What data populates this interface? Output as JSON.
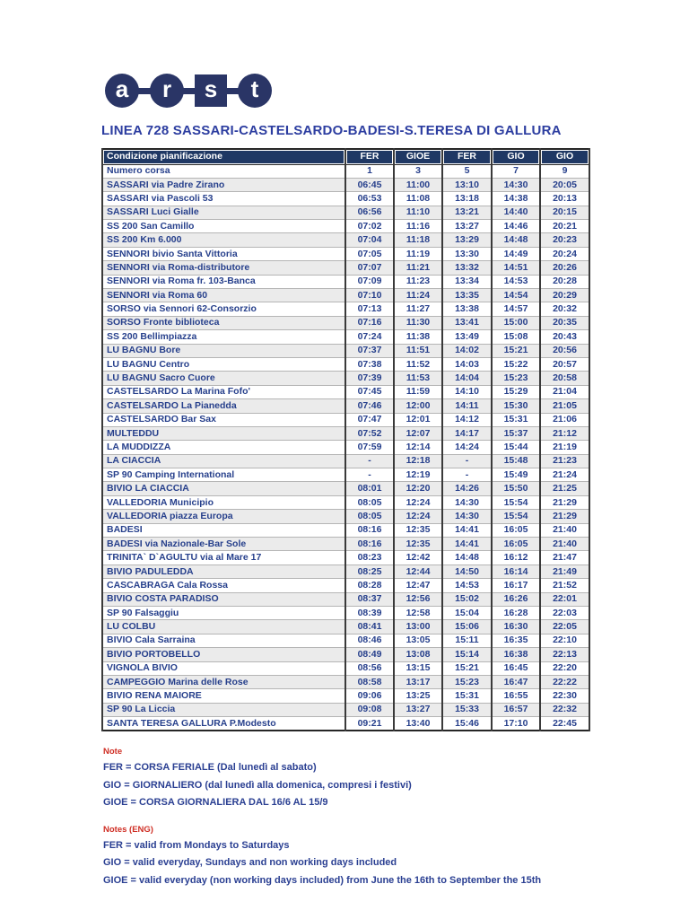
{
  "logo": {
    "letters": [
      "a",
      "r",
      "s",
      "t"
    ]
  },
  "title": "LINEA 728 SASSARI-CASTELSARDO-BADESI-S.TERESA DI GALLURA",
  "table": {
    "header": {
      "col0": "Condizione pianificazione",
      "cols": [
        "FER",
        "GIOE",
        "FER",
        "GIO",
        "GIO"
      ]
    },
    "numero_corsa": {
      "label": "Numero corsa",
      "values": [
        "1",
        "3",
        "5",
        "7",
        "9"
      ]
    },
    "rows": [
      {
        "stop": "SASSARI via Padre Zirano",
        "times": [
          "06:45",
          "11:00",
          "13:10",
          "14:30",
          "20:05"
        ]
      },
      {
        "stop": "SASSARI via Pascoli 53",
        "times": [
          "06:53",
          "11:08",
          "13:18",
          "14:38",
          "20:13"
        ]
      },
      {
        "stop": "SASSARI Luci Gialle",
        "times": [
          "06:56",
          "11:10",
          "13:21",
          "14:40",
          "20:15"
        ]
      },
      {
        "stop": "SS 200 San Camillo",
        "times": [
          "07:02",
          "11:16",
          "13:27",
          "14:46",
          "20:21"
        ]
      },
      {
        "stop": "SS 200 Km 6.000",
        "times": [
          "07:04",
          "11:18",
          "13:29",
          "14:48",
          "20:23"
        ]
      },
      {
        "stop": "SENNORI bivio Santa Vittoria",
        "times": [
          "07:05",
          "11:19",
          "13:30",
          "14:49",
          "20:24"
        ]
      },
      {
        "stop": "SENNORI via Roma-distributore",
        "times": [
          "07:07",
          "11:21",
          "13:32",
          "14:51",
          "20:26"
        ]
      },
      {
        "stop": "SENNORI via Roma fr. 103-Banca",
        "times": [
          "07:09",
          "11:23",
          "13:34",
          "14:53",
          "20:28"
        ]
      },
      {
        "stop": "SENNORI via Roma 60",
        "times": [
          "07:10",
          "11:24",
          "13:35",
          "14:54",
          "20:29"
        ]
      },
      {
        "stop": "SORSO via Sennori 62-Consorzio",
        "times": [
          "07:13",
          "11:27",
          "13:38",
          "14:57",
          "20:32"
        ]
      },
      {
        "stop": "SORSO Fronte biblioteca",
        "times": [
          "07:16",
          "11:30",
          "13:41",
          "15:00",
          "20:35"
        ]
      },
      {
        "stop": "SS 200 Bellimpiazza",
        "times": [
          "07:24",
          "11:38",
          "13:49",
          "15:08",
          "20:43"
        ]
      },
      {
        "stop": "LU BAGNU Bore",
        "times": [
          "07:37",
          "11:51",
          "14:02",
          "15:21",
          "20:56"
        ]
      },
      {
        "stop": "LU BAGNU Centro",
        "times": [
          "07:38",
          "11:52",
          "14:03",
          "15:22",
          "20:57"
        ]
      },
      {
        "stop": "LU BAGNU Sacro Cuore",
        "times": [
          "07:39",
          "11:53",
          "14:04",
          "15:23",
          "20:58"
        ]
      },
      {
        "stop": "CASTELSARDO La Marina Fofo'",
        "times": [
          "07:45",
          "11:59",
          "14:10",
          "15:29",
          "21:04"
        ]
      },
      {
        "stop": "CASTELSARDO La Pianedda",
        "times": [
          "07:46",
          "12:00",
          "14:11",
          "15:30",
          "21:05"
        ]
      },
      {
        "stop": "CASTELSARDO Bar Sax",
        "times": [
          "07:47",
          "12:01",
          "14:12",
          "15:31",
          "21:06"
        ]
      },
      {
        "stop": "MULTEDDU",
        "times": [
          "07:52",
          "12:07",
          "14:17",
          "15:37",
          "21:12"
        ]
      },
      {
        "stop": "LA MUDDIZZA",
        "times": [
          "07:59",
          "12:14",
          "14:24",
          "15:44",
          "21:19"
        ]
      },
      {
        "stop": "LA CIACCIA",
        "times": [
          "-",
          "12:18",
          "-",
          "15:48",
          "21:23"
        ]
      },
      {
        "stop": "SP 90 Camping International",
        "times": [
          "-",
          "12:19",
          "-",
          "15:49",
          "21:24"
        ]
      },
      {
        "stop": "BIVIO LA CIACCIA",
        "times": [
          "08:01",
          "12:20",
          "14:26",
          "15:50",
          "21:25"
        ]
      },
      {
        "stop": "VALLEDORIA Municipio",
        "times": [
          "08:05",
          "12:24",
          "14:30",
          "15:54",
          "21:29"
        ]
      },
      {
        "stop": "VALLEDORIA piazza Europa",
        "times": [
          "08:05",
          "12:24",
          "14:30",
          "15:54",
          "21:29"
        ]
      },
      {
        "stop": "BADESI",
        "times": [
          "08:16",
          "12:35",
          "14:41",
          "16:05",
          "21:40"
        ]
      },
      {
        "stop": "BADESI via Nazionale-Bar Sole",
        "times": [
          "08:16",
          "12:35",
          "14:41",
          "16:05",
          "21:40"
        ]
      },
      {
        "stop": "TRINITA` D`AGULTU via al Mare 17",
        "times": [
          "08:23",
          "12:42",
          "14:48",
          "16:12",
          "21:47"
        ]
      },
      {
        "stop": "BIVIO PADULEDDA",
        "times": [
          "08:25",
          "12:44",
          "14:50",
          "16:14",
          "21:49"
        ]
      },
      {
        "stop": "CASCABRAGA Cala Rossa",
        "times": [
          "08:28",
          "12:47",
          "14:53",
          "16:17",
          "21:52"
        ]
      },
      {
        "stop": "BIVIO COSTA PARADISO",
        "times": [
          "08:37",
          "12:56",
          "15:02",
          "16:26",
          "22:01"
        ]
      },
      {
        "stop": "SP 90 Falsaggiu",
        "times": [
          "08:39",
          "12:58",
          "15:04",
          "16:28",
          "22:03"
        ]
      },
      {
        "stop": "LU COLBU",
        "times": [
          "08:41",
          "13:00",
          "15:06",
          "16:30",
          "22:05"
        ]
      },
      {
        "stop": "BIVIO Cala Sarraina",
        "times": [
          "08:46",
          "13:05",
          "15:11",
          "16:35",
          "22:10"
        ]
      },
      {
        "stop": "BIVIO PORTOBELLO",
        "times": [
          "08:49",
          "13:08",
          "15:14",
          "16:38",
          "22:13"
        ]
      },
      {
        "stop": "VIGNOLA BIVIO",
        "times": [
          "08:56",
          "13:15",
          "15:21",
          "16:45",
          "22:20"
        ]
      },
      {
        "stop": "CAMPEGGIO Marina delle Rose",
        "times": [
          "08:58",
          "13:17",
          "15:23",
          "16:47",
          "22:22"
        ]
      },
      {
        "stop": "BIVIO RENA MAIORE",
        "times": [
          "09:06",
          "13:25",
          "15:31",
          "16:55",
          "22:30"
        ]
      },
      {
        "stop": "SP 90 La Liccia",
        "times": [
          "09:08",
          "13:27",
          "15:33",
          "16:57",
          "22:32"
        ]
      },
      {
        "stop": "SANTA TERESA GALLURA P.Modesto",
        "times": [
          "09:21",
          "13:40",
          "15:46",
          "17:10",
          "22:45"
        ]
      }
    ]
  },
  "notes_it": {
    "heading": "Note",
    "lines": [
      "FER = CORSA FERIALE (Dal lunedì al sabato)",
      "GIO = GIORNALIERO (dal lunedì alla domenica, compresi i festivi)",
      "GIOE = CORSA GIORNALIERA DAL 16/6 AL 15/9"
    ]
  },
  "notes_en": {
    "heading": "Notes (ENG)",
    "lines": [
      "FER = valid from Mondays to Saturdays",
      "GIO = valid everyday, Sundays and non working days included",
      "GIOE = valid everyday (non working days included) from June the 16th to September the 15th"
    ]
  },
  "colors": {
    "header_bg": "#1f3864",
    "header_text": "#ffffff",
    "body_text_navy": "#27408c",
    "title_navy": "#2c3da0",
    "logo_navy": "#2a3566",
    "row_shade": "#ebebeb",
    "note_red": "#cf2e24"
  }
}
